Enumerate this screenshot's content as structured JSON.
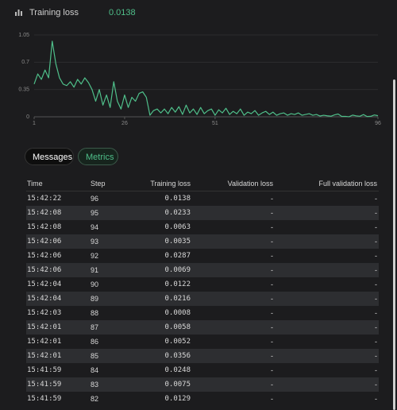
{
  "header": {
    "title": "Training loss",
    "value": "0.0138"
  },
  "chart_data": {
    "type": "line",
    "color": "#4fbf8a",
    "x": [
      1,
      2,
      3,
      4,
      5,
      6,
      7,
      8,
      9,
      10,
      11,
      12,
      13,
      14,
      15,
      16,
      17,
      18,
      19,
      20,
      21,
      22,
      23,
      24,
      25,
      26,
      27,
      28,
      29,
      30,
      31,
      32,
      33,
      34,
      35,
      36,
      37,
      38,
      39,
      40,
      41,
      42,
      43,
      44,
      45,
      46,
      47,
      48,
      49,
      50,
      51,
      52,
      53,
      54,
      55,
      56,
      57,
      58,
      59,
      60,
      61,
      62,
      63,
      64,
      65,
      66,
      67,
      68,
      69,
      70,
      71,
      72,
      73,
      74,
      75,
      76,
      77,
      78,
      79,
      80,
      81,
      82,
      83,
      84,
      85,
      86,
      87,
      88,
      89,
      90,
      91,
      92,
      93,
      94,
      95,
      96
    ],
    "values": [
      0.42,
      0.55,
      0.48,
      0.6,
      0.5,
      0.97,
      0.68,
      0.5,
      0.42,
      0.4,
      0.45,
      0.38,
      0.48,
      0.42,
      0.5,
      0.44,
      0.35,
      0.2,
      0.35,
      0.15,
      0.28,
      0.12,
      0.45,
      0.2,
      0.1,
      0.28,
      0.12,
      0.25,
      0.2,
      0.3,
      0.32,
      0.25,
      0.02,
      0.08,
      0.1,
      0.05,
      0.1,
      0.04,
      0.12,
      0.06,
      0.13,
      0.03,
      0.15,
      0.05,
      0.1,
      0.03,
      0.12,
      0.04,
      0.08,
      0.1,
      0.02,
      0.09,
      0.05,
      0.11,
      0.03,
      0.07,
      0.04,
      0.1,
      0.02,
      0.06,
      0.04,
      0.08,
      0.02,
      0.05,
      0.07,
      0.03,
      0.06,
      0.02,
      0.04,
      0.05,
      0.02,
      0.04,
      0.03,
      0.05,
      0.02,
      0.03,
      0.04,
      0.02,
      0.03,
      0.01,
      0.02,
      0.0129,
      0.0075,
      0.0248,
      0.0356,
      0.0052,
      0.0058,
      0.0008,
      0.0216,
      0.0122,
      0.0069,
      0.0287,
      0.0035,
      0.0063,
      0.0233,
      0.0138
    ],
    "xlim": [
      1,
      96
    ],
    "xticks": [
      1,
      26,
      51,
      96
    ],
    "ylim": [
      0,
      1.05
    ],
    "yticks": [
      0,
      0.35,
      0.7,
      1.05
    ],
    "grid": true
  },
  "tabs": [
    "Messages",
    "Metrics"
  ],
  "table": {
    "columns": [
      "Time",
      "Step",
      "Training loss",
      "Validation loss",
      "Full validation loss"
    ],
    "rows": [
      [
        "15:42:22",
        "96",
        "0.0138",
        "-",
        "-"
      ],
      [
        "15:42:08",
        "95",
        "0.0233",
        "-",
        "-"
      ],
      [
        "15:42:08",
        "94",
        "0.0063",
        "-",
        "-"
      ],
      [
        "15:42:06",
        "93",
        "0.0035",
        "-",
        "-"
      ],
      [
        "15:42:06",
        "92",
        "0.0287",
        "-",
        "-"
      ],
      [
        "15:42:06",
        "91",
        "0.0069",
        "-",
        "-"
      ],
      [
        "15:42:04",
        "90",
        "0.0122",
        "-",
        "-"
      ],
      [
        "15:42:04",
        "89",
        "0.0216",
        "-",
        "-"
      ],
      [
        "15:42:03",
        "88",
        "0.0008",
        "-",
        "-"
      ],
      [
        "15:42:01",
        "87",
        "0.0058",
        "-",
        "-"
      ],
      [
        "15:42:01",
        "86",
        "0.0052",
        "-",
        "-"
      ],
      [
        "15:42:01",
        "85",
        "0.0356",
        "-",
        "-"
      ],
      [
        "15:41:59",
        "84",
        "0.0248",
        "-",
        "-"
      ],
      [
        "15:41:59",
        "83",
        "0.0075",
        "-",
        "-"
      ],
      [
        "15:41:59",
        "82",
        "0.0129",
        "-",
        "-"
      ]
    ]
  }
}
